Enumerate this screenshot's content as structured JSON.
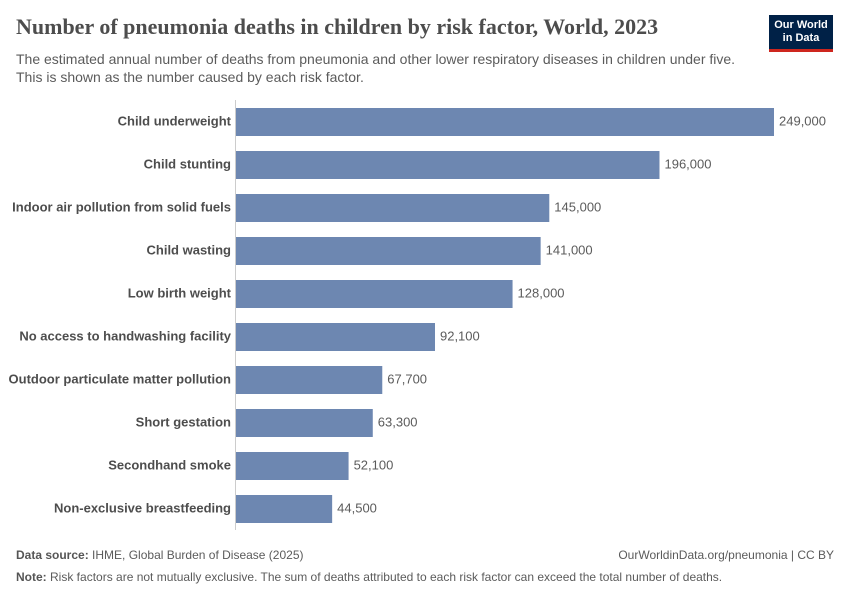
{
  "chart_data": {
    "type": "bar",
    "title": "Number of pneumonia deaths in children by risk factor, World, 2023",
    "subtitle": "The estimated annual number of deaths from pneumonia and other lower respiratory diseases in children under five. This is shown as the number caused by each risk factor.",
    "categories": [
      "Child underweight",
      "Child stunting",
      "Indoor air pollution from solid fuels",
      "Child wasting",
      "Low birth weight",
      "No access to handwashing facility",
      "Outdoor particulate matter pollution",
      "Short gestation",
      "Secondhand smoke",
      "Non-exclusive breastfeeding"
    ],
    "values": [
      249000,
      196000,
      145000,
      141000,
      128000,
      92100,
      67700,
      63300,
      52100,
      44500
    ],
    "value_labels": [
      "249,000",
      "196,000",
      "145,000",
      "141,000",
      "128,000",
      "92,100",
      "67,700",
      "63,300",
      "52,100",
      "44,500"
    ],
    "color": "#6d87b1"
  },
  "logo": {
    "line1": "Our World",
    "line2": "in Data"
  },
  "footer": {
    "source_label": "Data source:",
    "source": "IHME, Global Burden of Disease (2025)",
    "url": "OurWorldinData.org/pneumonia | CC BY",
    "note_label": "Note:",
    "note": "Risk factors are not mutually exclusive. The sum of deaths attributed to each risk factor can exceed the total number of deaths."
  }
}
